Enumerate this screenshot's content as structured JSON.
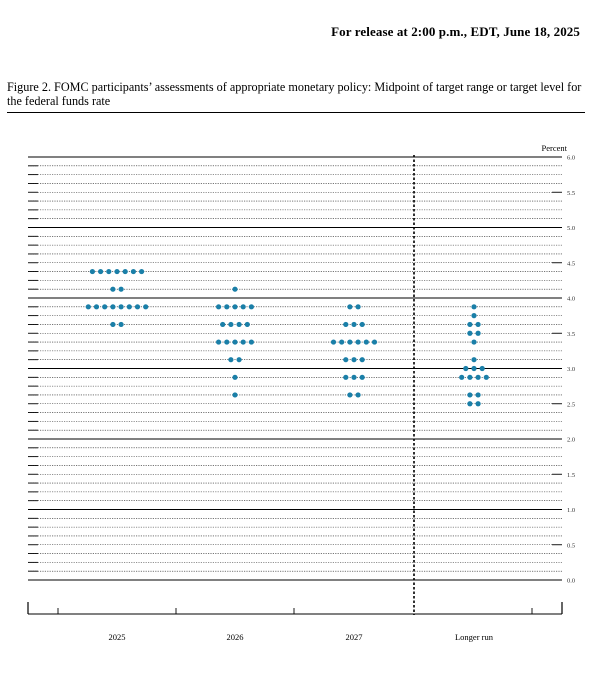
{
  "header": {
    "release": "For release at 2:00 p.m., EDT, June 18, 2025"
  },
  "figure": {
    "caption": "Figure 2.  FOMC participants’ assessments of appropriate monetary policy: Midpoint of target range or target level for the federal funds rate"
  },
  "colors": {
    "dot": "#1a7fa8",
    "axis": "#000000"
  },
  "chart_data": {
    "type": "scatter",
    "title": "",
    "ylabel": "Percent",
    "xlabel": "",
    "ylim": [
      0,
      6
    ],
    "grid": true,
    "categories": [
      "2025",
      "2026",
      "2027",
      "Longer run"
    ],
    "yticks": [
      "0.0",
      "0.5",
      "1.0",
      "1.5",
      "2.0",
      "2.5",
      "3.0",
      "3.5",
      "4.0",
      "4.5",
      "5.0",
      "5.5",
      "6.0"
    ],
    "series": [
      {
        "category": "2025",
        "points": [
          {
            "y": 4.375,
            "count": 7
          },
          {
            "y": 4.125,
            "count": 2
          },
          {
            "y": 3.875,
            "count": 8
          },
          {
            "y": 3.625,
            "count": 2
          }
        ]
      },
      {
        "category": "2026",
        "points": [
          {
            "y": 4.125,
            "count": 1
          },
          {
            "y": 3.875,
            "count": 5
          },
          {
            "y": 3.625,
            "count": 4
          },
          {
            "y": 3.375,
            "count": 5
          },
          {
            "y": 3.125,
            "count": 2
          },
          {
            "y": 2.875,
            "count": 1
          },
          {
            "y": 2.625,
            "count": 1
          }
        ]
      },
      {
        "category": "2027",
        "points": [
          {
            "y": 3.875,
            "count": 2
          },
          {
            "y": 3.625,
            "count": 3
          },
          {
            "y": 3.375,
            "count": 6
          },
          {
            "y": 3.125,
            "count": 3
          },
          {
            "y": 2.875,
            "count": 3
          },
          {
            "y": 2.625,
            "count": 2
          }
        ]
      },
      {
        "category": "Longer run",
        "points": [
          {
            "y": 3.875,
            "count": 1
          },
          {
            "y": 3.75,
            "count": 1
          },
          {
            "y": 3.625,
            "count": 2
          },
          {
            "y": 3.5,
            "count": 2
          },
          {
            "y": 3.375,
            "count": 1
          },
          {
            "y": 3.125,
            "count": 1
          },
          {
            "y": 3.0,
            "count": 3
          },
          {
            "y": 2.875,
            "count": 4
          },
          {
            "y": 2.625,
            "count": 2
          },
          {
            "y": 2.5,
            "count": 2
          }
        ]
      }
    ]
  }
}
